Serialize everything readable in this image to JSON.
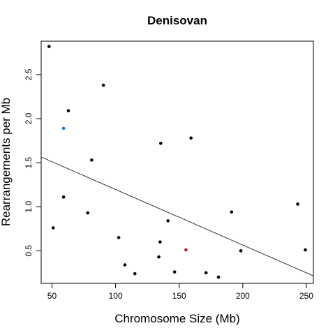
{
  "chart_data": {
    "type": "scatter",
    "title": "Denisovan",
    "xlabel": "Chromosome Size (Mb)",
    "ylabel": "Rearrangements per Mb",
    "xlim": [
      41.5,
      255.5
    ],
    "ylim": [
      0.13,
      2.88
    ],
    "xticks": [
      50,
      100,
      150,
      200,
      250
    ],
    "yticks": [
      0.5,
      1.0,
      1.5,
      2.0,
      2.5
    ],
    "xtick_labels": [
      "50",
      "100",
      "150",
      "200",
      "250"
    ],
    "ytick_labels": [
      "0.5",
      "1.0",
      "1.5",
      "2.0",
      "2.5"
    ],
    "grid": false,
    "legend": "none",
    "points": [
      {
        "x": 47.7,
        "y": 2.82,
        "color": "#000000"
      },
      {
        "x": 51.0,
        "y": 0.76,
        "color": "#000000"
      },
      {
        "x": 59.1,
        "y": 1.89,
        "color": "#1f78d0"
      },
      {
        "x": 59.1,
        "y": 1.11,
        "color": "#000000"
      },
      {
        "x": 62.9,
        "y": 2.09,
        "color": "#000000"
      },
      {
        "x": 78.1,
        "y": 0.93,
        "color": "#000000"
      },
      {
        "x": 81.2,
        "y": 1.53,
        "color": "#000000"
      },
      {
        "x": 90.4,
        "y": 2.38,
        "color": "#000000"
      },
      {
        "x": 102.5,
        "y": 0.65,
        "color": "#000000"
      },
      {
        "x": 107.3,
        "y": 0.34,
        "color": "#000000"
      },
      {
        "x": 115.2,
        "y": 0.24,
        "color": "#000000"
      },
      {
        "x": 134.0,
        "y": 0.43,
        "color": "#000000"
      },
      {
        "x": 135.0,
        "y": 0.6,
        "color": "#000000"
      },
      {
        "x": 135.5,
        "y": 1.72,
        "color": "#000000"
      },
      {
        "x": 141.2,
        "y": 0.84,
        "color": "#000000"
      },
      {
        "x": 146.4,
        "y": 0.26,
        "color": "#000000"
      },
      {
        "x": 155.3,
        "y": 0.51,
        "color": "#b22222"
      },
      {
        "x": 159.3,
        "y": 1.78,
        "color": "#000000"
      },
      {
        "x": 171.1,
        "y": 0.25,
        "color": "#000000"
      },
      {
        "x": 180.9,
        "y": 0.2,
        "color": "#000000"
      },
      {
        "x": 191.2,
        "y": 0.94,
        "color": "#000000"
      },
      {
        "x": 198.5,
        "y": 0.5,
        "color": "#000000"
      },
      {
        "x": 243.2,
        "y": 1.03,
        "color": "#000000"
      },
      {
        "x": 249.2,
        "y": 0.51,
        "color": "#000000"
      }
    ],
    "regression_line": {
      "x": [
        41.5,
        255.5
      ],
      "y": [
        1.565,
        0.215
      ],
      "color": "#000000"
    }
  }
}
